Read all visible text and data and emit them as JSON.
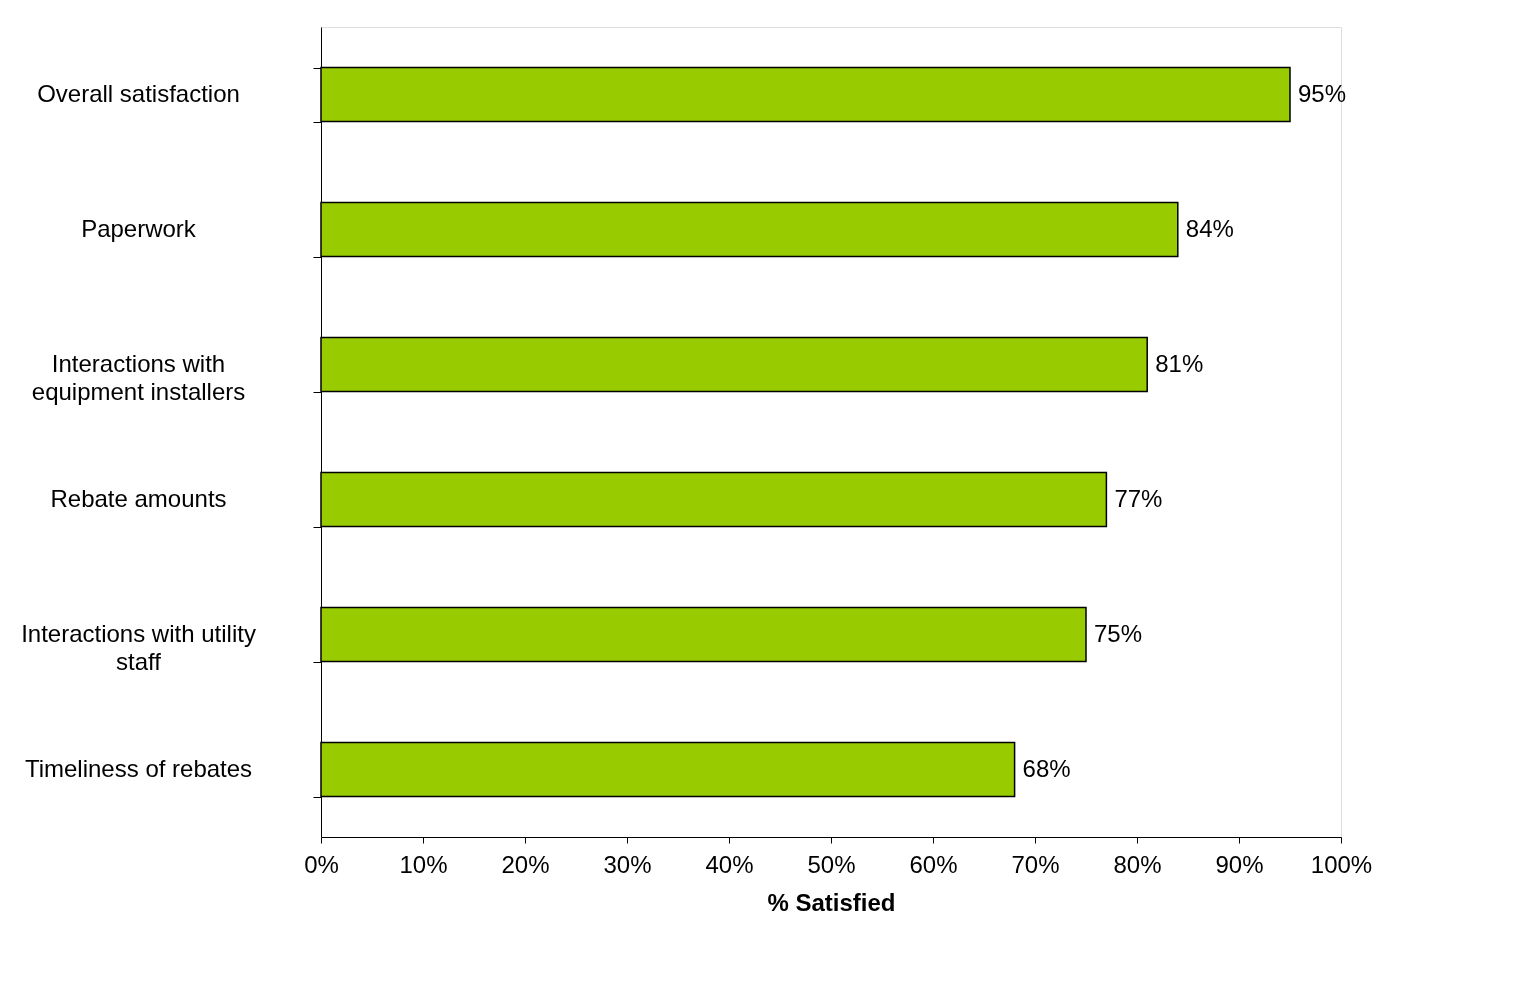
{
  "chart_data": {
    "type": "bar",
    "orientation": "horizontal",
    "xlabel": "% Satisfied",
    "categories": [
      "Overall satisfaction",
      "Paperwork",
      "Interactions with\nequipment installers",
      "Rebate amounts",
      "Interactions with utility\nstaff",
      "Timeliness of rebates"
    ],
    "values": [
      95,
      84,
      81,
      77,
      75,
      68
    ],
    "value_labels": [
      "95%",
      "84%",
      "81%",
      "77%",
      "75%",
      "68%"
    ],
    "color": "#99cc00",
    "xlim": [
      0,
      100
    ],
    "xticks": [
      {
        "value": 0,
        "label": "0%"
      },
      {
        "value": 10,
        "label": "10%"
      },
      {
        "value": 20,
        "label": "20%"
      },
      {
        "value": 30,
        "label": "30%"
      },
      {
        "value": 40,
        "label": "40%"
      },
      {
        "value": 50,
        "label": "50%"
      },
      {
        "value": 60,
        "label": "60%"
      },
      {
        "value": 70,
        "label": "70%"
      },
      {
        "value": 80,
        "label": "80%"
      },
      {
        "value": 90,
        "label": "90%"
      },
      {
        "value": 100,
        "label": "100%"
      }
    ],
    "grid": false
  }
}
